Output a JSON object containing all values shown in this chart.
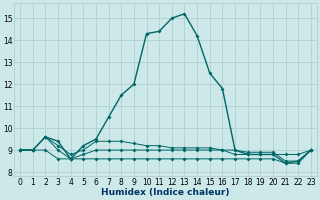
{
  "xlabel": "Humidex (Indice chaleur)",
  "bg_color": "#cce8e8",
  "grid_color": "#aacccc",
  "line_color": "#006666",
  "xlim": [
    -0.5,
    23.5
  ],
  "ylim": [
    7.8,
    15.7
  ],
  "yticks": [
    8,
    9,
    10,
    11,
    12,
    13,
    14,
    15
  ],
  "xticks": [
    0,
    1,
    2,
    3,
    4,
    5,
    6,
    7,
    8,
    9,
    10,
    11,
    12,
    13,
    14,
    15,
    16,
    17,
    18,
    19,
    20,
    21,
    22,
    23
  ],
  "series_main": [
    9.0,
    9.0,
    9.6,
    9.4,
    8.6,
    9.2,
    9.5,
    10.5,
    11.5,
    12.0,
    14.3,
    14.4,
    15.0,
    15.2,
    14.2,
    12.5,
    11.8,
    9.0,
    8.8,
    8.8,
    8.8,
    8.4,
    8.5,
    9.0
  ],
  "series_flat1": [
    9.0,
    9.0,
    9.6,
    9.0,
    8.6,
    8.8,
    9.0,
    9.0,
    9.0,
    9.0,
    9.0,
    9.0,
    9.0,
    9.0,
    9.0,
    9.0,
    9.0,
    8.8,
    8.8,
    8.8,
    8.8,
    8.8,
    8.8,
    9.0
  ],
  "series_flat2": [
    9.0,
    9.0,
    9.0,
    8.6,
    8.6,
    8.6,
    8.6,
    8.6,
    8.6,
    8.6,
    8.6,
    8.6,
    8.6,
    8.6,
    8.6,
    8.6,
    8.6,
    8.6,
    8.6,
    8.6,
    8.6,
    8.4,
    8.4,
    9.0
  ],
  "series_flat3": [
    9.0,
    9.0,
    9.6,
    9.2,
    8.8,
    9.0,
    9.4,
    9.4,
    9.4,
    9.3,
    9.2,
    9.2,
    9.1,
    9.1,
    9.1,
    9.1,
    9.0,
    9.0,
    8.9,
    8.9,
    8.9,
    8.5,
    8.5,
    9.0
  ]
}
